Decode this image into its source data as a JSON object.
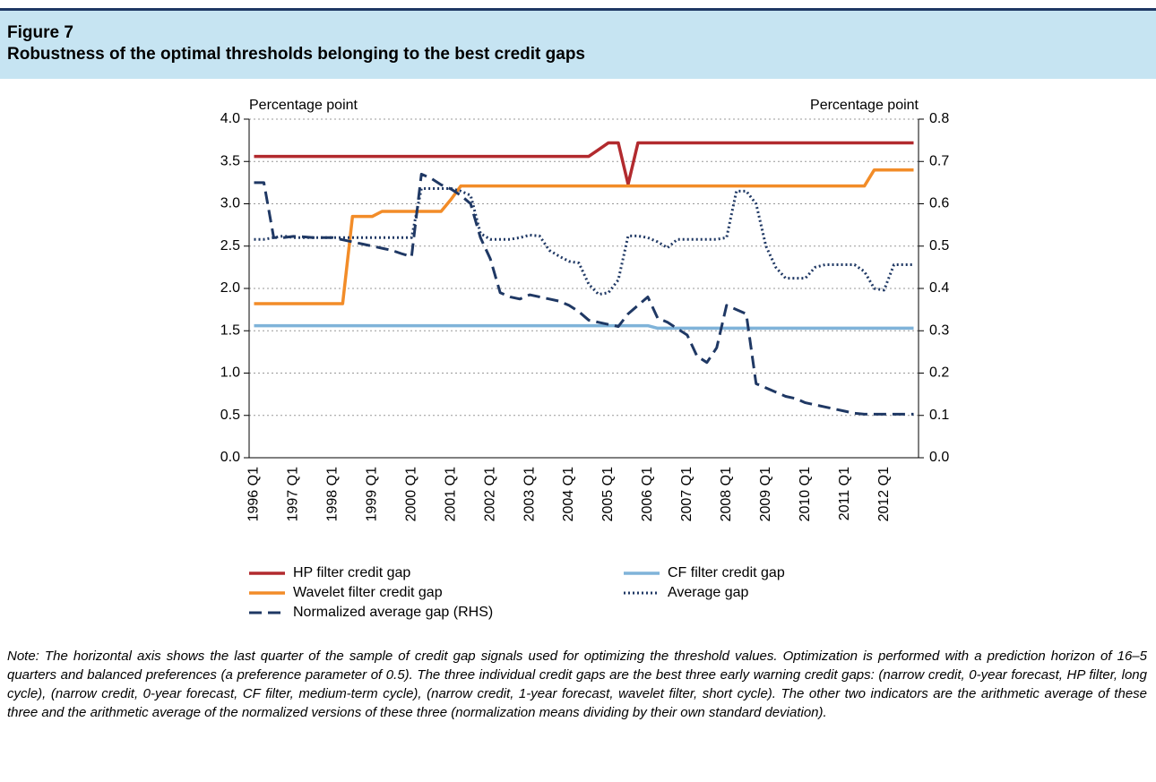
{
  "header": {
    "label": "Figure 7",
    "title": "Robustness of the optimal thresholds belonging to the best credit gaps"
  },
  "chart_data": {
    "type": "line",
    "ylabel": "Percentage point",
    "y2label": "Percentage point",
    "categories": [
      "1996 Q1",
      null,
      null,
      null,
      "1997 Q1",
      null,
      null,
      null,
      "1998 Q1",
      null,
      null,
      null,
      "1999 Q1",
      null,
      null,
      null,
      "2000 Q1",
      null,
      null,
      null,
      "2001 Q1",
      null,
      null,
      null,
      "2002 Q1",
      null,
      null,
      null,
      "2003 Q1",
      null,
      null,
      null,
      "2004 Q1",
      null,
      null,
      null,
      "2005 Q1",
      null,
      null,
      null,
      "2006 Q1",
      null,
      null,
      null,
      "2007 Q1",
      null,
      null,
      null,
      "2008 Q1",
      null,
      null,
      null,
      "2009 Q1",
      null,
      null,
      null,
      "2010 Q1",
      null,
      null,
      null,
      "2011 Q1",
      null,
      null,
      null,
      "2012 Q1",
      null,
      null,
      null
    ],
    "ylim": [
      0,
      4
    ],
    "yticks": [
      {
        "value": 0,
        "label": "0.0"
      },
      0.5,
      {
        "value": 1,
        "label": "1.0"
      },
      1.5,
      {
        "value": 2,
        "label": "2.0"
      },
      2.5,
      {
        "value": 3,
        "label": "3.0"
      },
      3.5,
      {
        "value": 4,
        "label": "4.0"
      }
    ],
    "y2lim": [
      0,
      0.8
    ],
    "y2ticks": [
      {
        "value": 0,
        "label": "0.0"
      },
      0.1,
      0.2,
      0.3,
      0.4,
      0.5,
      0.6,
      0.7,
      0.8
    ],
    "grid": true,
    "series": [
      {
        "name": "HP filter credit gap",
        "color": "#b22a2e",
        "style": "solid",
        "values": [
          3.56,
          3.56,
          3.56,
          3.56,
          3.56,
          3.56,
          3.56,
          3.56,
          3.56,
          3.56,
          3.56,
          3.56,
          3.56,
          3.56,
          3.56,
          3.56,
          3.56,
          3.56,
          3.56,
          3.56,
          3.56,
          3.56,
          3.56,
          3.56,
          3.56,
          3.56,
          3.56,
          3.56,
          3.56,
          3.56,
          3.56,
          3.56,
          3.56,
          3.56,
          3.56,
          3.64,
          3.72,
          3.72,
          3.23,
          3.72,
          3.72,
          3.72,
          3.72,
          3.72,
          3.72,
          3.72,
          3.72,
          3.72,
          3.72,
          3.72,
          3.72,
          3.72,
          3.72,
          3.72,
          3.72,
          3.72,
          3.72,
          3.72,
          3.72,
          3.72,
          3.72,
          3.72,
          3.72,
          3.72,
          3.72,
          3.72,
          3.72,
          3.72
        ]
      },
      {
        "name": "CF filter credit gap",
        "color": "#7fb3d9",
        "style": "solid",
        "values": [
          1.56,
          1.56,
          1.56,
          1.56,
          1.56,
          1.56,
          1.56,
          1.56,
          1.56,
          1.56,
          1.56,
          1.56,
          1.56,
          1.56,
          1.56,
          1.56,
          1.56,
          1.56,
          1.56,
          1.56,
          1.56,
          1.56,
          1.56,
          1.56,
          1.56,
          1.56,
          1.56,
          1.56,
          1.56,
          1.56,
          1.56,
          1.56,
          1.56,
          1.56,
          1.56,
          1.56,
          1.56,
          1.56,
          1.56,
          1.56,
          1.56,
          1.53,
          1.53,
          1.53,
          1.53,
          1.53,
          1.53,
          1.53,
          1.53,
          1.53,
          1.53,
          1.53,
          1.53,
          1.53,
          1.53,
          1.53,
          1.53,
          1.53,
          1.53,
          1.53,
          1.53,
          1.53,
          1.53,
          1.53,
          1.53,
          1.53,
          1.53,
          1.53
        ]
      },
      {
        "name": "Wavelet filter credit gap",
        "color": "#f28c28",
        "style": "solid",
        "values": [
          1.82,
          1.82,
          1.82,
          1.82,
          1.82,
          1.82,
          1.82,
          1.82,
          1.82,
          1.82,
          2.85,
          2.85,
          2.85,
          2.91,
          2.91,
          2.91,
          2.91,
          2.91,
          2.91,
          2.91,
          3.05,
          3.21,
          3.21,
          3.21,
          3.21,
          3.21,
          3.21,
          3.21,
          3.21,
          3.21,
          3.21,
          3.21,
          3.21,
          3.21,
          3.21,
          3.21,
          3.21,
          3.21,
          3.21,
          3.21,
          3.21,
          3.21,
          3.21,
          3.21,
          3.21,
          3.21,
          3.21,
          3.21,
          3.21,
          3.21,
          3.21,
          3.21,
          3.21,
          3.21,
          3.21,
          3.21,
          3.21,
          3.21,
          3.21,
          3.21,
          3.21,
          3.21,
          3.21,
          3.4,
          3.4,
          3.4,
          3.4,
          3.4
        ]
      },
      {
        "name": "Average gap",
        "color": "#1f3864",
        "style": "dotted",
        "values": [
          2.58,
          2.58,
          2.6,
          2.62,
          2.6,
          2.6,
          2.6,
          2.6,
          2.6,
          2.6,
          2.6,
          2.6,
          2.6,
          2.6,
          2.6,
          2.6,
          2.6,
          3.18,
          3.18,
          3.18,
          3.18,
          3.15,
          3.1,
          2.65,
          2.58,
          2.58,
          2.58,
          2.6,
          2.63,
          2.62,
          2.45,
          2.38,
          2.32,
          2.3,
          2.05,
          1.93,
          1.95,
          2.1,
          2.62,
          2.62,
          2.6,
          2.55,
          2.48,
          2.58,
          2.58,
          2.58,
          2.58,
          2.58,
          2.6,
          3.15,
          3.15,
          3.0,
          2.5,
          2.25,
          2.12,
          2.12,
          2.12,
          2.25,
          2.28,
          2.28,
          2.28,
          2.28,
          2.2,
          2.0,
          1.98,
          2.28,
          2.28,
          2.28
        ]
      },
      {
        "name": "Normalized average gap (RHS)",
        "color": "#1f3864",
        "style": "dashed",
        "axis": "y2",
        "values": [
          0.65,
          0.65,
          0.52,
          0.52,
          0.523,
          0.522,
          0.52,
          0.52,
          0.52,
          0.515,
          0.51,
          0.505,
          0.5,
          0.495,
          0.49,
          0.482,
          0.475,
          0.67,
          0.66,
          0.645,
          0.635,
          0.62,
          0.6,
          0.52,
          0.47,
          0.39,
          0.38,
          0.375,
          0.385,
          0.38,
          0.375,
          0.37,
          0.36,
          0.345,
          0.325,
          0.32,
          0.315,
          0.31,
          0.34,
          0.36,
          0.38,
          0.33,
          0.32,
          0.305,
          0.29,
          0.24,
          0.225,
          0.26,
          0.36,
          0.35,
          0.34,
          0.175,
          0.165,
          0.155,
          0.145,
          0.14,
          0.13,
          0.125,
          0.12,
          0.115,
          0.11,
          0.105,
          0.103,
          0.103,
          0.103,
          0.103,
          0.103,
          0.103
        ]
      }
    ]
  },
  "note": "Note: The horizontal axis shows the last quarter of the sample of credit gap signals used for optimizing the threshold values. Optimization is performed with a prediction horizon of 16–5 quarters and balanced preferences (a preference parameter of 0.5). The three individual credit gaps are the best three early warning credit gaps: (narrow credit, 0-year forecast, HP filter, long cycle), (narrow credit, 0-year forecast, CF filter, medium-term cycle), (narrow credit, 1-year forecast, wavelet filter, short cycle). The other two indicators are the arithmetic average of these three and the arithmetic average of the normalized versions of these three (normalization means dividing by their own standard deviation)."
}
